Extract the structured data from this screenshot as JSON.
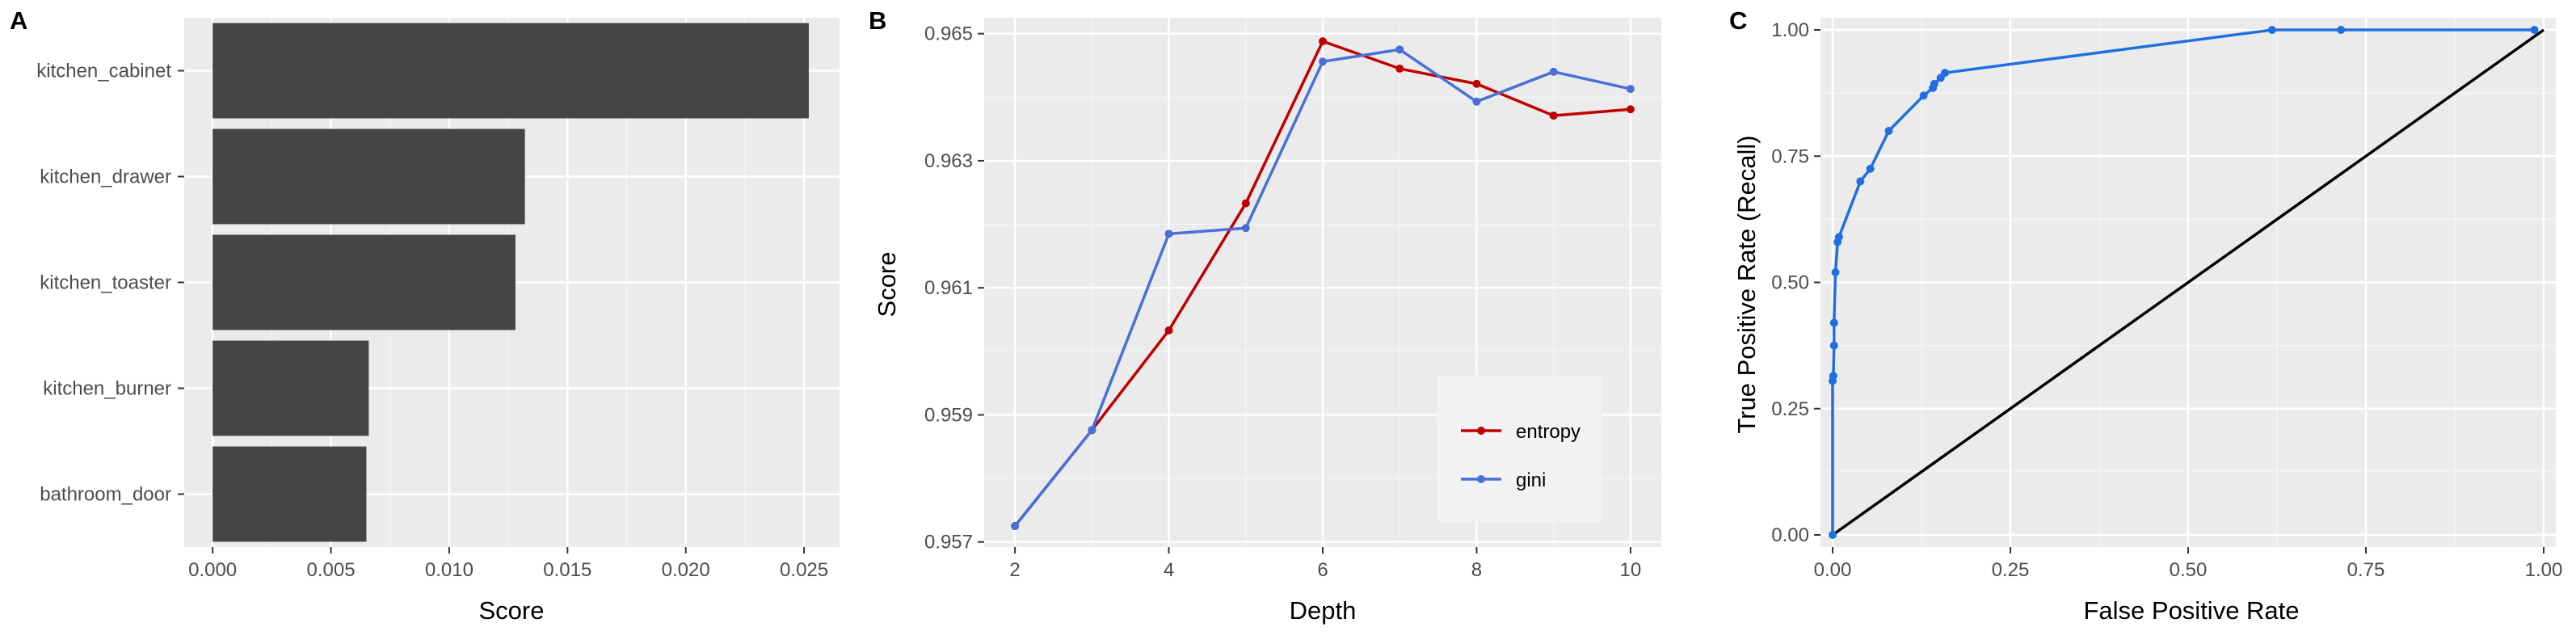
{
  "colors": {
    "panel_bg": "#ebebeb",
    "grid_major": "#ffffff",
    "grid_minor": "#f5f5f5",
    "bar_fill": "#454545",
    "entropy": "#c00000",
    "gini": "#4a6fd6",
    "roc": "#1f6fe0",
    "diagonal": "#000000",
    "tick_text": "#4d4d4d"
  },
  "chart_data": [
    {
      "panel": "A",
      "type": "bar",
      "orientation": "horizontal",
      "title": "",
      "xlabel": "Score",
      "ylabel": "",
      "categories": [
        "kitchen_cabinet",
        "kitchen_drawer",
        "kitchen_toaster",
        "kitchen_burner",
        "bathroom_door"
      ],
      "values": [
        0.0252,
        0.0132,
        0.0128,
        0.0066,
        0.0065
      ],
      "xlim": [
        -0.0012,
        0.0265
      ],
      "xticks": [
        0,
        0.005,
        0.01,
        0.015,
        0.02,
        0.025
      ],
      "xtick_labels": [
        "0.000",
        "0.005",
        "0.010",
        "0.015",
        "0.020",
        "0.025"
      ],
      "grid": true
    },
    {
      "panel": "B",
      "type": "line",
      "title": "",
      "xlabel": "Depth",
      "ylabel": "Score",
      "xlim": [
        1.6,
        10.4
      ],
      "ylim": [
        0.95692,
        0.96525
      ],
      "xticks": [
        2,
        4,
        6,
        8,
        10
      ],
      "xtick_labels": [
        "2",
        "4",
        "6",
        "8",
        "10"
      ],
      "yticks": [
        0.957,
        0.959,
        0.961,
        0.963,
        0.965
      ],
      "ytick_labels": [
        "0.957",
        "0.959",
        "0.961",
        "0.963",
        "0.965"
      ],
      "x": [
        2,
        3,
        4,
        5,
        6,
        7,
        8,
        9,
        10
      ],
      "series": [
        {
          "name": "entropy",
          "values": [
            0.95725,
            0.95876,
            0.96033,
            0.96233,
            0.96488,
            0.96445,
            0.96421,
            0.96371,
            0.96381
          ]
        },
        {
          "name": "gini",
          "values": [
            0.95725,
            0.95876,
            0.96185,
            0.96194,
            0.96456,
            0.96475,
            0.96393,
            0.9644,
            0.96413
          ]
        }
      ],
      "legend_position": "bottom-right",
      "grid": true
    },
    {
      "panel": "C",
      "type": "line",
      "title": "",
      "xlabel": "False Positive Rate",
      "ylabel": "True Positive Rate (Recall)",
      "xlim": [
        0,
        1
      ],
      "ylim": [
        0,
        1
      ],
      "xticks": [
        0,
        0.25,
        0.5,
        0.75,
        1
      ],
      "xtick_labels": [
        "0.00",
        "0.25",
        "0.50",
        "0.75",
        "1.00"
      ],
      "yticks": [
        0,
        0.25,
        0.5,
        0.75,
        1
      ],
      "ytick_labels": [
        "0.00",
        "0.25",
        "0.50",
        "0.75",
        "1.00"
      ],
      "series": [
        {
          "name": "",
          "x": [
            0,
            0,
            0.001,
            0.002,
            0.002,
            0.004,
            0.007,
            0.009,
            0.039,
            0.053,
            0.079,
            0.128,
            0.141,
            0.143,
            0.152,
            0.158,
            0.618,
            0.715,
            0.987
          ],
          "y": [
            0,
            0.305,
            0.315,
            0.375,
            0.42,
            0.52,
            0.58,
            0.59,
            0.7,
            0.725,
            0.8,
            0.87,
            0.885,
            0.893,
            0.905,
            0.915,
            1.0,
            1.0,
            1.0
          ]
        },
        {
          "name": "",
          "x": [
            0,
            1
          ],
          "y": [
            0,
            1
          ]
        }
      ],
      "grid": true
    }
  ],
  "panel_labels": {
    "a": "A",
    "b": "B",
    "c": "C"
  },
  "axis_titles": {
    "a_x": "Score",
    "b_x": "Depth",
    "b_y": "Score",
    "c_x": "False Positive Rate",
    "c_y": "True Positive Rate (Recall)"
  },
  "legend": {
    "entropy": "entropy",
    "gini": "gini"
  }
}
